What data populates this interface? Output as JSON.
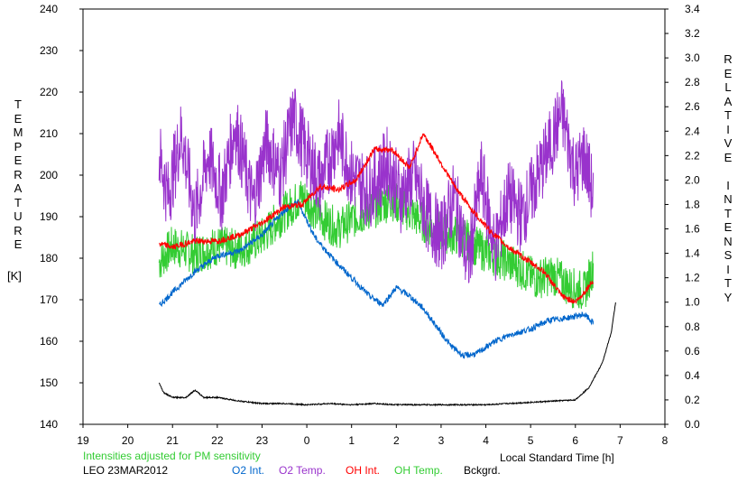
{
  "chart_data": {
    "type": "line",
    "left_axis": {
      "label_letters": [
        "T",
        "E",
        "M",
        "P",
        "E",
        "R",
        "A",
        "T",
        "U",
        "R",
        "E"
      ],
      "unit": "[K]",
      "range": [
        140,
        240
      ],
      "ticks": [
        140,
        150,
        160,
        170,
        180,
        190,
        200,
        210,
        220,
        230,
        240
      ]
    },
    "right_axis": {
      "label_letters": [
        "R",
        "E",
        "L",
        "A",
        "T",
        "I",
        "V",
        "E",
        "",
        "I",
        "N",
        "T",
        "E",
        "N",
        "S",
        "I",
        "T",
        "Y"
      ],
      "range": [
        0.0,
        3.4
      ],
      "ticks": [
        "0.0",
        "0.2",
        "0.4",
        "0.6",
        "0.8",
        "1.0",
        "1.2",
        "1.4",
        "1.6",
        "1.8",
        "2.0",
        "2.2",
        "2.4",
        "2.6",
        "2.8",
        "3.0",
        "3.2",
        "3.4"
      ]
    },
    "x_axis": {
      "label": "Local Standard Time [h]",
      "range": [
        19,
        32
      ],
      "tick_labels": [
        "19",
        "20",
        "21",
        "22",
        "23",
        "0",
        "1",
        "2",
        "3",
        "4",
        "5",
        "6",
        "7",
        "8"
      ]
    },
    "series": [
      {
        "name": "O2 Int.",
        "axis": "right",
        "color": "#0066cc",
        "x": [
          20.7,
          21.0,
          21.5,
          22.0,
          22.5,
          23.0,
          23.5,
          23.8,
          24.2,
          24.6,
          25.0,
          25.4,
          25.7,
          26.0,
          26.3,
          26.6,
          26.9,
          27.2,
          27.5,
          27.8,
          28.2,
          28.6,
          29.0,
          29.4,
          29.8,
          30.2,
          30.4
        ],
        "y": [
          0.97,
          1.08,
          1.25,
          1.38,
          1.42,
          1.55,
          1.75,
          1.82,
          1.52,
          1.35,
          1.2,
          1.05,
          0.98,
          1.12,
          1.05,
          0.95,
          0.8,
          0.65,
          0.56,
          0.58,
          0.68,
          0.74,
          0.78,
          0.85,
          0.87,
          0.9,
          0.83
        ]
      },
      {
        "name": "O2 Temp.",
        "axis": "left",
        "color": "#9933cc",
        "x": [
          20.7,
          20.9,
          21.2,
          21.5,
          21.8,
          22.1,
          22.4,
          22.8,
          23.1,
          23.4,
          23.7,
          24.0,
          24.3,
          24.7,
          25.0,
          25.4,
          25.8,
          26.1,
          26.4,
          26.7,
          27.0,
          27.3,
          27.6,
          27.9,
          28.2,
          28.5,
          28.8,
          29.1,
          29.4,
          29.7,
          30.0,
          30.2,
          30.4
        ],
        "y": [
          205,
          195,
          210,
          190,
          205,
          195,
          212,
          193,
          208,
          200,
          214,
          205,
          198,
          210,
          200,
          196,
          203,
          195,
          200,
          190,
          185,
          195,
          178,
          200,
          182,
          195,
          190,
          198,
          206,
          215,
          200,
          205,
          195
        ],
        "spread": 9
      },
      {
        "name": "OH Int.",
        "axis": "right",
        "color": "#ff0000",
        "x": [
          20.7,
          21.0,
          21.5,
          22.0,
          22.5,
          23.0,
          23.5,
          23.9,
          24.3,
          24.7,
          25.1,
          25.5,
          25.9,
          26.3,
          26.6,
          26.9,
          27.3,
          27.7,
          28.1,
          28.5,
          28.9,
          29.3,
          29.7,
          30.0,
          30.2,
          30.4
        ],
        "y": [
          1.48,
          1.45,
          1.5,
          1.5,
          1.55,
          1.65,
          1.78,
          1.8,
          1.95,
          1.92,
          2.0,
          2.25,
          2.25,
          2.1,
          2.38,
          2.2,
          1.95,
          1.75,
          1.58,
          1.45,
          1.35,
          1.25,
          1.05,
          1.0,
          1.08,
          1.18
        ]
      },
      {
        "name": "OH Temp.",
        "axis": "left",
        "color": "#33cc33",
        "x": [
          20.7,
          21.0,
          21.5,
          22.0,
          22.5,
          23.0,
          23.5,
          23.9,
          24.3,
          24.7,
          25.1,
          25.5,
          25.9,
          26.3,
          26.7,
          27.1,
          27.5,
          27.9,
          28.3,
          28.7,
          29.1,
          29.5,
          29.9,
          30.2,
          30.4
        ],
        "y": [
          179,
          183,
          181,
          183,
          182,
          185,
          191,
          195,
          190,
          187,
          190,
          192,
          194,
          191,
          188,
          186,
          185,
          182,
          180,
          178,
          175,
          176,
          173,
          172,
          178
        ],
        "spread": 5
      },
      {
        "name": "Bckgrd.",
        "axis": "right",
        "color": "#000000",
        "x": [
          20.7,
          20.8,
          21.0,
          21.3,
          21.5,
          21.7,
          22.0,
          22.5,
          23.0,
          23.5,
          24.0,
          24.5,
          25.0,
          25.5,
          26.0,
          26.5,
          27.0,
          27.5,
          28.0,
          28.5,
          29.0,
          29.5,
          30.0,
          30.3,
          30.6,
          30.8,
          30.9
        ],
        "y": [
          0.34,
          0.26,
          0.22,
          0.22,
          0.28,
          0.22,
          0.22,
          0.19,
          0.17,
          0.17,
          0.16,
          0.17,
          0.16,
          0.17,
          0.16,
          0.16,
          0.16,
          0.16,
          0.16,
          0.17,
          0.18,
          0.19,
          0.2,
          0.3,
          0.5,
          0.75,
          1.0
        ]
      }
    ],
    "legend": {
      "station": "LEO 23MAR2012",
      "note": "Intensities adjusted for PM sensitivity",
      "note_color": "#33cc33"
    }
  }
}
